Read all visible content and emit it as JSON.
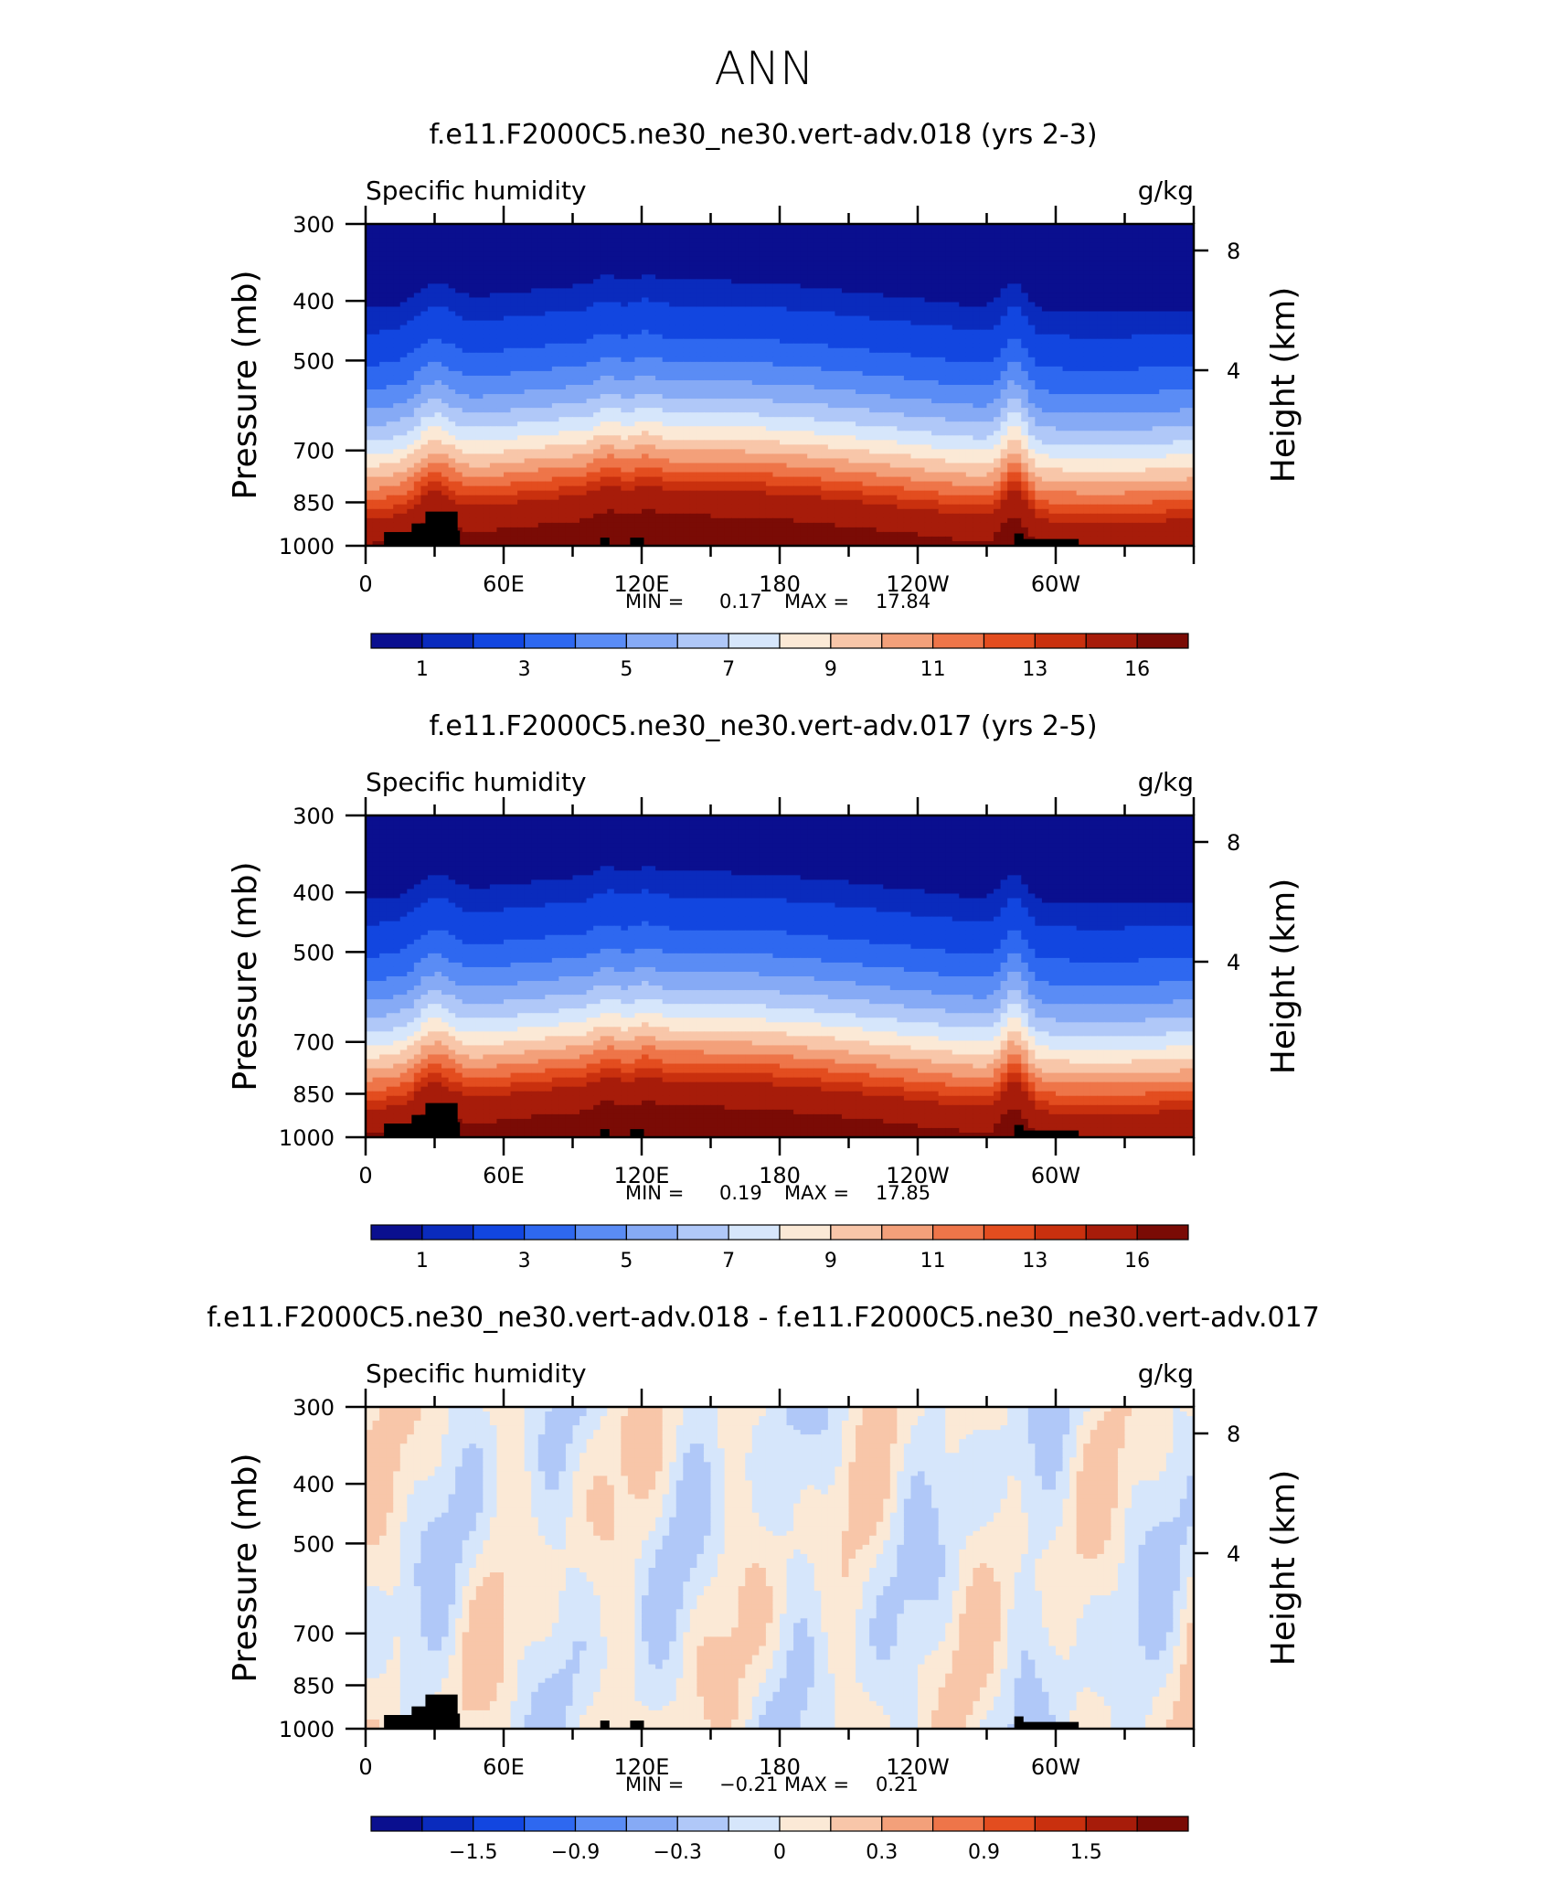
{
  "page_title": "ANN",
  "chart_data": [
    {
      "type": "heatmap",
      "title": "f.e11.F2000C5.ne30_ne30.vert-adv.018 (yrs 2-3)",
      "left_label": "Specific humidity",
      "units": "g/kg",
      "ylabel": "Pressure (mb)",
      "y2label": "Height (km)",
      "y_ticks": [
        "300",
        "400",
        "500",
        "700",
        "850",
        "1000"
      ],
      "y_tick_values": [
        300,
        400,
        500,
        700,
        850,
        1000
      ],
      "y2_ticks": [
        "8",
        "4"
      ],
      "y2_tick_values": [
        8,
        4
      ],
      "x_ticks": [
        "0",
        "60E",
        "120E",
        "180",
        "120W",
        "60W"
      ],
      "x_tick_values": [
        0,
        60,
        120,
        180,
        240,
        300
      ],
      "xlim": [
        0,
        360
      ],
      "ylim": [
        300,
        1000
      ],
      "stats": {
        "min_label": "MIN =",
        "min": "0.17",
        "max_label": "MAX =",
        "max": "17.84"
      },
      "colorbar": {
        "labels": [
          "1",
          "3",
          "5",
          "7",
          "9",
          "11",
          "13",
          "16"
        ],
        "colors": [
          "#0a0f8f",
          "#0a2bbd",
          "#1246e0",
          "#2e68f0",
          "#5a8cf5",
          "#86aaf5",
          "#b0c8f8",
          "#d6e6fb",
          "#fbe9d6",
          "#f8c6a9",
          "#f3a07a",
          "#ee7549",
          "#e34d1f",
          "#c9300e",
          "#a71c0a",
          "#7a0b05"
        ]
      }
    },
    {
      "type": "heatmap",
      "title": "f.e11.F2000C5.ne30_ne30.vert-adv.017 (yrs 2-5)",
      "left_label": "Specific humidity",
      "units": "g/kg",
      "ylabel": "Pressure (mb)",
      "y2label": "Height (km)",
      "y_ticks": [
        "300",
        "400",
        "500",
        "700",
        "850",
        "1000"
      ],
      "y_tick_values": [
        300,
        400,
        500,
        700,
        850,
        1000
      ],
      "y2_ticks": [
        "8",
        "4"
      ],
      "y2_tick_values": [
        8,
        4
      ],
      "x_ticks": [
        "0",
        "60E",
        "120E",
        "180",
        "120W",
        "60W"
      ],
      "x_tick_values": [
        0,
        60,
        120,
        180,
        240,
        300
      ],
      "xlim": [
        0,
        360
      ],
      "ylim": [
        300,
        1000
      ],
      "stats": {
        "min_label": "MIN =",
        "min": "0.19",
        "max_label": "MAX =",
        "max": "17.85"
      },
      "colorbar": {
        "labels": [
          "1",
          "3",
          "5",
          "7",
          "9",
          "11",
          "13",
          "16"
        ],
        "colors": [
          "#0a0f8f",
          "#0a2bbd",
          "#1246e0",
          "#2e68f0",
          "#5a8cf5",
          "#86aaf5",
          "#b0c8f8",
          "#d6e6fb",
          "#fbe9d6",
          "#f8c6a9",
          "#f3a07a",
          "#ee7549",
          "#e34d1f",
          "#c9300e",
          "#a71c0a",
          "#7a0b05"
        ]
      }
    },
    {
      "type": "heatmap",
      "title": "f.e11.F2000C5.ne30_ne30.vert-adv.018 - f.e11.F2000C5.ne30_ne30.vert-adv.017",
      "left_label": "Specific humidity",
      "units": "g/kg",
      "ylabel": "Pressure (mb)",
      "y2label": "Height (km)",
      "y_ticks": [
        "300",
        "400",
        "500",
        "700",
        "850",
        "1000"
      ],
      "y_tick_values": [
        300,
        400,
        500,
        700,
        850,
        1000
      ],
      "y2_ticks": [
        "8",
        "4"
      ],
      "y2_tick_values": [
        8,
        4
      ],
      "x_ticks": [
        "0",
        "60E",
        "120E",
        "180",
        "120W",
        "60W"
      ],
      "x_tick_values": [
        0,
        60,
        120,
        180,
        240,
        300
      ],
      "xlim": [
        0,
        360
      ],
      "ylim": [
        300,
        1000
      ],
      "stats": {
        "min_label": "MIN =",
        "min": "−0.21",
        "max_label": "MAX =",
        "max": "0.21"
      },
      "colorbar": {
        "labels": [
          "−1.5",
          "−0.9",
          "−0.3",
          "0",
          "0.3",
          "0.9",
          "1.5"
        ],
        "colors": [
          "#0a0f8f",
          "#0a2bbd",
          "#1246e0",
          "#2e68f0",
          "#5a8cf5",
          "#86aaf5",
          "#b0c8f8",
          "#d6e6fb",
          "#fbe9d6",
          "#f8c6a9",
          "#f3a07a",
          "#ee7549",
          "#e34d1f",
          "#c9300e",
          "#a71c0a",
          "#7a0b05"
        ]
      }
    }
  ]
}
